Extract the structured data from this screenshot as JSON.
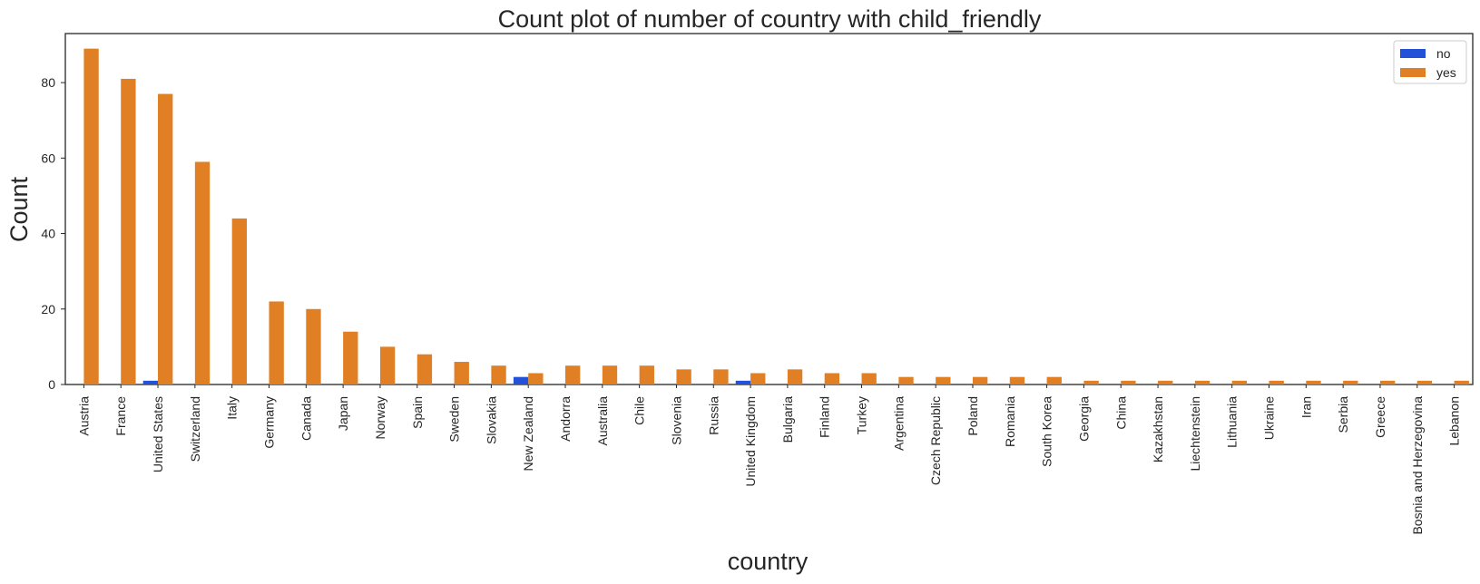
{
  "chart_data": {
    "type": "bar",
    "title": "Count plot of number of country with child_friendly",
    "xlabel": "country",
    "ylabel": "Count",
    "ylim": [
      0,
      93
    ],
    "yticks": [
      0,
      20,
      40,
      60,
      80
    ],
    "grid": false,
    "legend_position": "top-right",
    "categories": [
      "Austria",
      "France",
      "United States",
      "Switzerland",
      "Italy",
      "Germany",
      "Canada",
      "Japan",
      "Norway",
      "Spain",
      "Sweden",
      "Slovakia",
      "New Zealand",
      "Andorra",
      "Australia",
      "Chile",
      "Slovenia",
      "Russia",
      "United Kingdom",
      "Bulgaria",
      "Finland",
      "Turkey",
      "Argentina",
      "Czech Republic",
      "Poland",
      "Romania",
      "South Korea",
      "Georgia",
      "China",
      "Kazakhstan",
      "Liechtenstein",
      "Lithuania",
      "Ukraine",
      "Iran",
      "Serbia",
      "Greece",
      "Bosnia and Herzegovina",
      "Lebanon"
    ],
    "series": [
      {
        "name": "no",
        "color": "#2352d8",
        "values": [
          0,
          0,
          1,
          0,
          0,
          0,
          0,
          0,
          0,
          0,
          0,
          0,
          2,
          0,
          0,
          0,
          0,
          0,
          1,
          0,
          0,
          0,
          0,
          0,
          0,
          0,
          0,
          0,
          0,
          0,
          0,
          0,
          0,
          0,
          0,
          0,
          0,
          0
        ]
      },
      {
        "name": "yes",
        "color": "#e07f24",
        "values": [
          89,
          81,
          77,
          59,
          44,
          22,
          20,
          14,
          10,
          8,
          6,
          5,
          3,
          5,
          5,
          5,
          4,
          4,
          3,
          4,
          3,
          3,
          2,
          2,
          2,
          2,
          2,
          1,
          1,
          1,
          1,
          1,
          1,
          1,
          1,
          1,
          1,
          1
        ]
      }
    ]
  }
}
